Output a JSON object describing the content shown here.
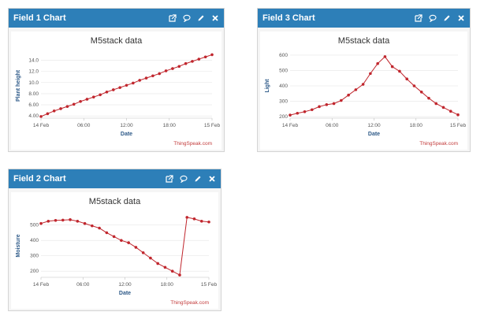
{
  "colors": {
    "header": "#2d7fb8",
    "series": "#c0262d",
    "credit": "#c23a3a"
  },
  "widgets": [
    {
      "title": "Field 1 Chart",
      "icons": [
        "external-link-icon",
        "comment-icon",
        "pencil-icon",
        "close-icon"
      ],
      "chart_data": {
        "type": "line",
        "title": "M5stack data",
        "xlabel": "Date",
        "ylabel": "Plant height",
        "x_ticks": [
          "14 Feb",
          "06:00",
          "12:00",
          "18:00",
          "15 Feb"
        ],
        "y_ticks": [
          "4.00",
          "6.00",
          "8.00",
          "10.0",
          "12.0",
          "14.0"
        ],
        "ylim": [
          3.6,
          15.2
        ],
        "credit": "ThingSpeak.com",
        "series": [
          {
            "values": [
              3.9,
              4.4,
              4.9,
              5.3,
              5.7,
              6.1,
              6.6,
              7.0,
              7.4,
              7.8,
              8.3,
              8.7,
              9.1,
              9.5,
              9.9,
              10.4,
              10.8,
              11.2,
              11.6,
              12.1,
              12.5,
              12.9,
              13.4,
              13.8,
              14.2,
              14.6,
              15.0
            ]
          }
        ]
      }
    },
    {
      "title": "Field 3 Chart",
      "icons": [
        "external-link-icon",
        "comment-icon",
        "pencil-icon",
        "close-icon"
      ],
      "chart_data": {
        "type": "line",
        "title": "M5stack data",
        "xlabel": "Date",
        "ylabel": "Light",
        "x_ticks": [
          "14 Feb",
          "06:00",
          "12:00",
          "18:00",
          "15 Feb"
        ],
        "y_ticks": [
          "200",
          "300",
          "400",
          "500",
          "600"
        ],
        "ylim": [
          190,
          610
        ],
        "credit": "ThingSpeak.com",
        "series": [
          {
            "values": [
              210,
              222,
              232,
              245,
              265,
              278,
              285,
              305,
              340,
              375,
              410,
              480,
              545,
              590,
              525,
              495,
              445,
              400,
              360,
              320,
              285,
              260,
              235,
              212
            ]
          }
        ]
      }
    },
    {
      "title": "Field 2 Chart",
      "icons": [
        "external-link-icon",
        "comment-icon",
        "pencil-icon",
        "close-icon"
      ],
      "chart_data": {
        "type": "line",
        "title": "M5stack data",
        "xlabel": "Date",
        "ylabel": "Moisture",
        "x_ticks": [
          "14 Feb",
          "06:00",
          "12:00",
          "18:00",
          "15 Feb"
        ],
        "y_ticks": [
          "200",
          "300",
          "400",
          "500"
        ],
        "ylim": [
          160,
          570
        ],
        "credit": "ThingSpeak.com",
        "series": [
          {
            "values": [
              510,
              525,
              530,
              532,
              535,
              525,
              510,
              495,
              480,
              450,
              425,
              400,
              385,
              355,
              320,
              285,
              250,
              225,
              200,
              175,
              550,
              540,
              525,
              520
            ]
          }
        ]
      }
    }
  ]
}
